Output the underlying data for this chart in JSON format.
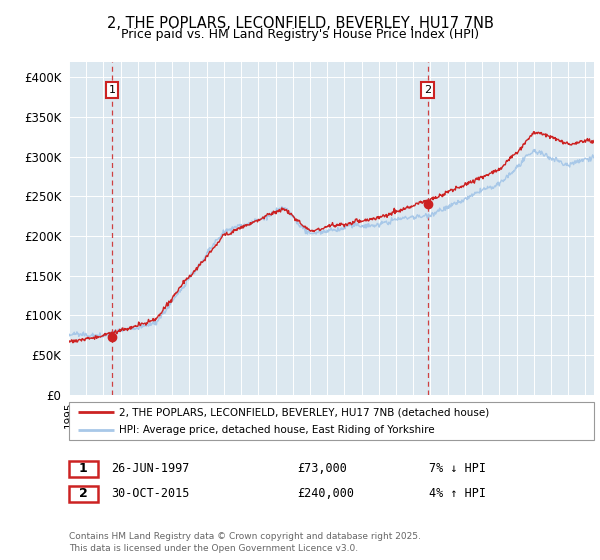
{
  "title1": "2, THE POPLARS, LECONFIELD, BEVERLEY, HU17 7NB",
  "title2": "Price paid vs. HM Land Registry's House Price Index (HPI)",
  "legend1": "2, THE POPLARS, LECONFIELD, BEVERLEY, HU17 7NB (detached house)",
  "legend2": "HPI: Average price, detached house, East Riding of Yorkshire",
  "sale1_date": "26-JUN-1997",
  "sale1_price": "£73,000",
  "sale1_hpi": "7% ↓ HPI",
  "sale2_date": "30-OCT-2015",
  "sale2_price": "£240,000",
  "sale2_hpi": "4% ↑ HPI",
  "copyright": "Contains HM Land Registry data © Crown copyright and database right 2025.\nThis data is licensed under the Open Government Licence v3.0.",
  "sale1_year": 1997.49,
  "sale1_value": 73000,
  "sale2_year": 2015.83,
  "sale2_value": 240000,
  "hpi_color": "#a8c8e8",
  "price_color": "#cc2222",
  "background_color": "#dce8f0",
  "ylim": [
    0,
    420000
  ],
  "xlim_start": 1995,
  "xlim_end": 2025.5
}
